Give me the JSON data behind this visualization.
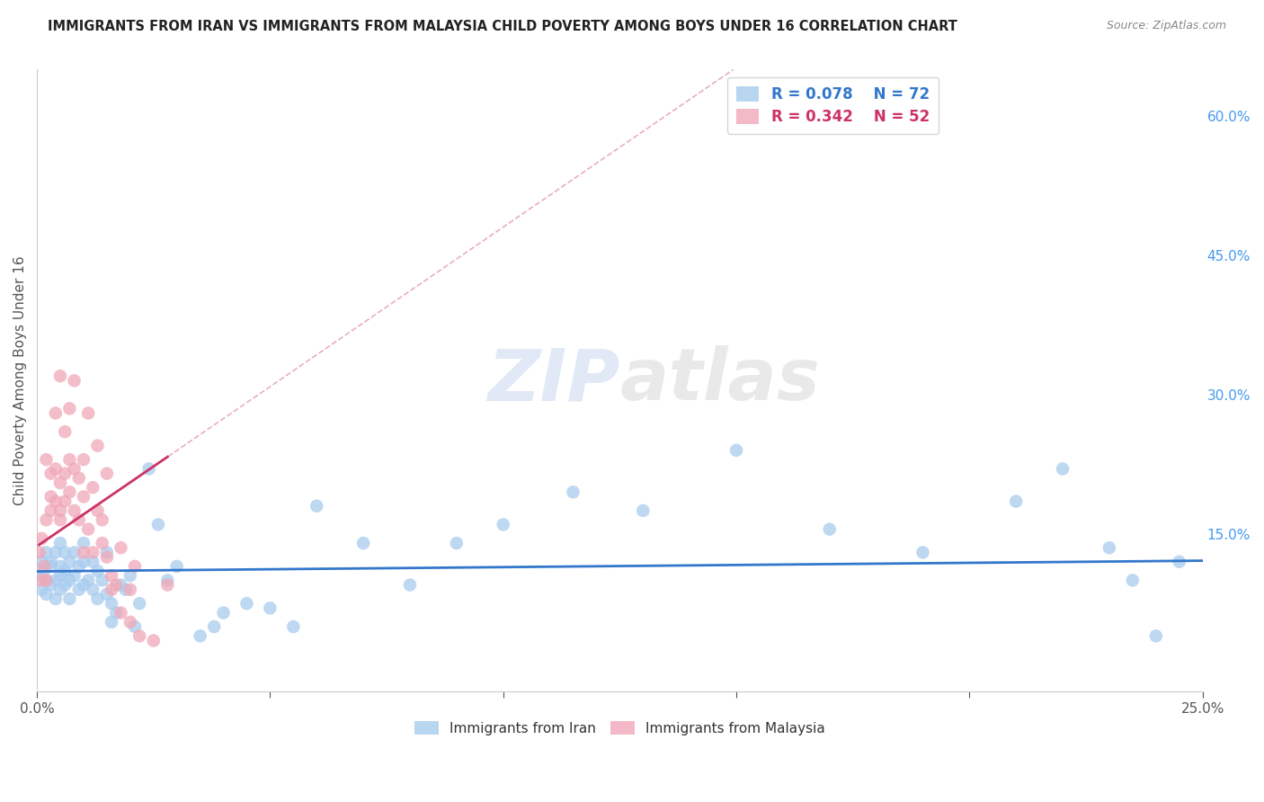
{
  "title": "IMMIGRANTS FROM IRAN VS IMMIGRANTS FROM MALAYSIA CHILD POVERTY AMONG BOYS UNDER 16 CORRELATION CHART",
  "source": "Source: ZipAtlas.com",
  "ylabel": "Child Poverty Among Boys Under 16",
  "xlim": [
    0.0,
    0.25
  ],
  "ylim": [
    -0.02,
    0.65
  ],
  "yticks_right": [
    0.0,
    0.15,
    0.3,
    0.45,
    0.6
  ],
  "yticklabels_right": [
    "",
    "15.0%",
    "30.0%",
    "45.0%",
    "60.0%"
  ],
  "iran_color": "#a8ccee",
  "malaysia_color": "#f0a8b8",
  "iran_R": 0.078,
  "iran_N": 72,
  "malaysia_R": 0.342,
  "malaysia_N": 52,
  "iran_line_color": "#3377cc",
  "malaysia_line_color": "#cc3366",
  "legend_iran_label": "Immigrants from Iran",
  "legend_malaysia_label": "Immigrants from Malaysia",
  "iran_x": [
    0.0005,
    0.001,
    0.001,
    0.0015,
    0.002,
    0.002,
    0.002,
    0.003,
    0.003,
    0.003,
    0.004,
    0.004,
    0.004,
    0.005,
    0.005,
    0.005,
    0.005,
    0.006,
    0.006,
    0.006,
    0.007,
    0.007,
    0.007,
    0.008,
    0.008,
    0.009,
    0.009,
    0.01,
    0.01,
    0.01,
    0.011,
    0.012,
    0.012,
    0.013,
    0.013,
    0.014,
    0.015,
    0.015,
    0.016,
    0.016,
    0.017,
    0.018,
    0.019,
    0.02,
    0.021,
    0.022,
    0.024,
    0.026,
    0.028,
    0.03,
    0.035,
    0.038,
    0.04,
    0.045,
    0.05,
    0.055,
    0.06,
    0.07,
    0.08,
    0.09,
    0.1,
    0.115,
    0.13,
    0.15,
    0.17,
    0.19,
    0.21,
    0.22,
    0.23,
    0.235,
    0.24,
    0.245
  ],
  "iran_y": [
    0.105,
    0.12,
    0.09,
    0.11,
    0.13,
    0.1,
    0.085,
    0.115,
    0.095,
    0.12,
    0.1,
    0.13,
    0.08,
    0.115,
    0.09,
    0.105,
    0.14,
    0.095,
    0.11,
    0.13,
    0.1,
    0.12,
    0.08,
    0.105,
    0.13,
    0.09,
    0.115,
    0.095,
    0.12,
    0.14,
    0.1,
    0.09,
    0.12,
    0.08,
    0.11,
    0.1,
    0.13,
    0.085,
    0.055,
    0.075,
    0.065,
    0.095,
    0.09,
    0.105,
    0.05,
    0.075,
    0.22,
    0.16,
    0.1,
    0.115,
    0.04,
    0.05,
    0.065,
    0.075,
    0.07,
    0.05,
    0.18,
    0.14,
    0.095,
    0.14,
    0.16,
    0.195,
    0.175,
    0.24,
    0.155,
    0.13,
    0.185,
    0.22,
    0.135,
    0.1,
    0.04,
    0.12
  ],
  "malaysia_x": [
    0.0005,
    0.001,
    0.001,
    0.0015,
    0.002,
    0.002,
    0.002,
    0.003,
    0.003,
    0.003,
    0.004,
    0.004,
    0.004,
    0.005,
    0.005,
    0.005,
    0.005,
    0.006,
    0.006,
    0.006,
    0.007,
    0.007,
    0.007,
    0.008,
    0.008,
    0.008,
    0.009,
    0.009,
    0.01,
    0.01,
    0.01,
    0.011,
    0.011,
    0.012,
    0.012,
    0.013,
    0.013,
    0.014,
    0.014,
    0.015,
    0.015,
    0.016,
    0.016,
    0.017,
    0.018,
    0.018,
    0.02,
    0.02,
    0.021,
    0.022,
    0.025,
    0.028
  ],
  "malaysia_y": [
    0.13,
    0.1,
    0.145,
    0.115,
    0.1,
    0.23,
    0.165,
    0.19,
    0.215,
    0.175,
    0.185,
    0.22,
    0.28,
    0.175,
    0.205,
    0.32,
    0.165,
    0.185,
    0.215,
    0.26,
    0.23,
    0.195,
    0.285,
    0.175,
    0.22,
    0.315,
    0.165,
    0.21,
    0.13,
    0.19,
    0.23,
    0.155,
    0.28,
    0.2,
    0.13,
    0.175,
    0.245,
    0.14,
    0.165,
    0.125,
    0.215,
    0.09,
    0.105,
    0.095,
    0.065,
    0.135,
    0.055,
    0.09,
    0.115,
    0.04,
    0.035,
    0.095
  ]
}
